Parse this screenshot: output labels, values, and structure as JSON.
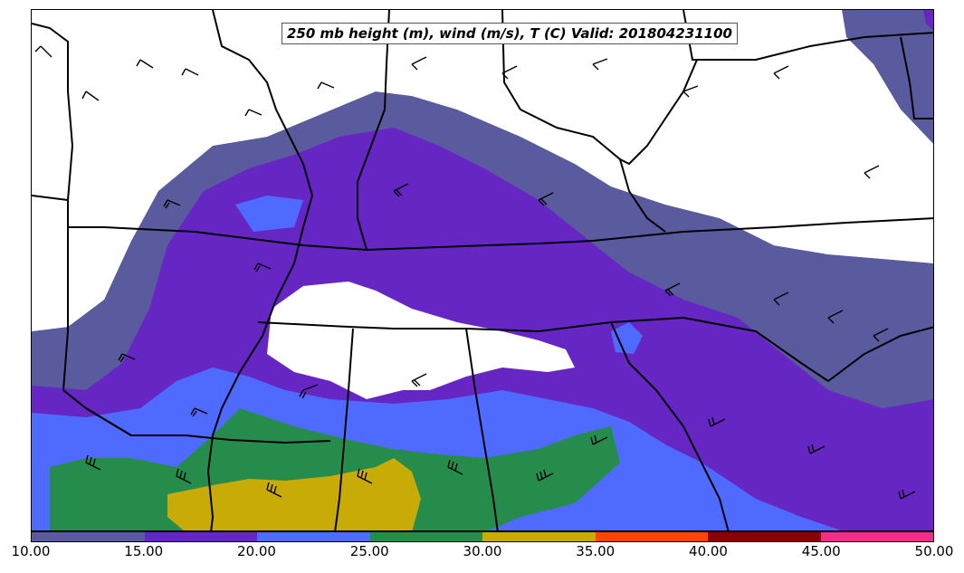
{
  "title": "250 mb height (m), wind (m/s), T (C) Valid: 201804231100",
  "colorbar": {
    "ticks": [
      "10.00",
      "15.00",
      "20.00",
      "25.00",
      "30.00",
      "35.00",
      "40.00",
      "45.00",
      "50.00"
    ],
    "colors": [
      "#5a5a9e",
      "#6626c4",
      "#4f6bff",
      "#268c4c",
      "#c9ab08",
      "#ff4500",
      "#8b0000",
      "#f02c8c"
    ]
  },
  "wind_fill_colors": {
    "band_10_15": "#5a5a9e",
    "band_15_20": "#6626c4",
    "band_20_25": "#4f6bff",
    "band_25_30": "#268c4c",
    "band_30_35": "#c9ab08"
  }
}
